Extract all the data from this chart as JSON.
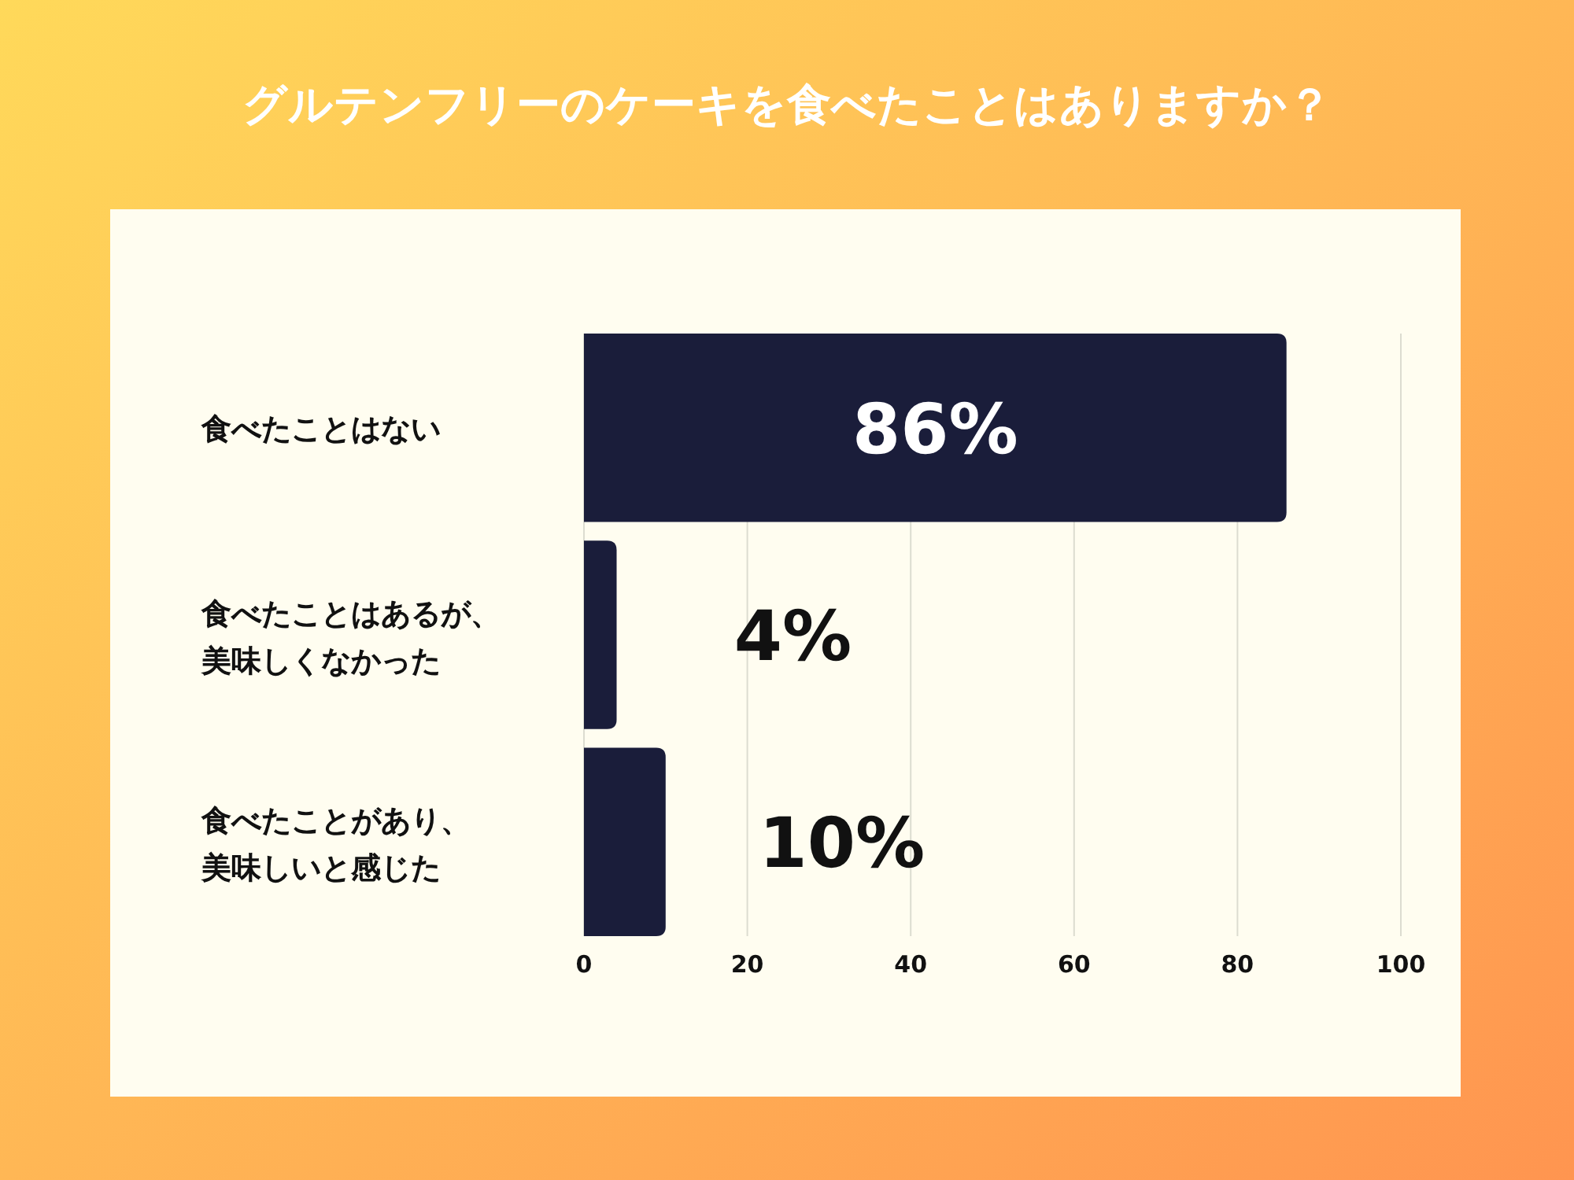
{
  "chart_data": {
    "type": "bar",
    "orientation": "horizontal",
    "title": "グルテンフリーのケーキを食べたことはありますか？",
    "categories": [
      "食べたことはない",
      "食べたことはあるが、美味しくなかった",
      "食べたことがあり、美味しいと感じた"
    ],
    "values": [
      86,
      4,
      10
    ],
    "value_labels": [
      "86%",
      "4%",
      "10%"
    ],
    "color": "#1a1d3a",
    "xlim": [
      0,
      100
    ],
    "xticks": [
      0,
      20,
      40,
      60,
      80,
      100
    ],
    "grid": "x"
  }
}
